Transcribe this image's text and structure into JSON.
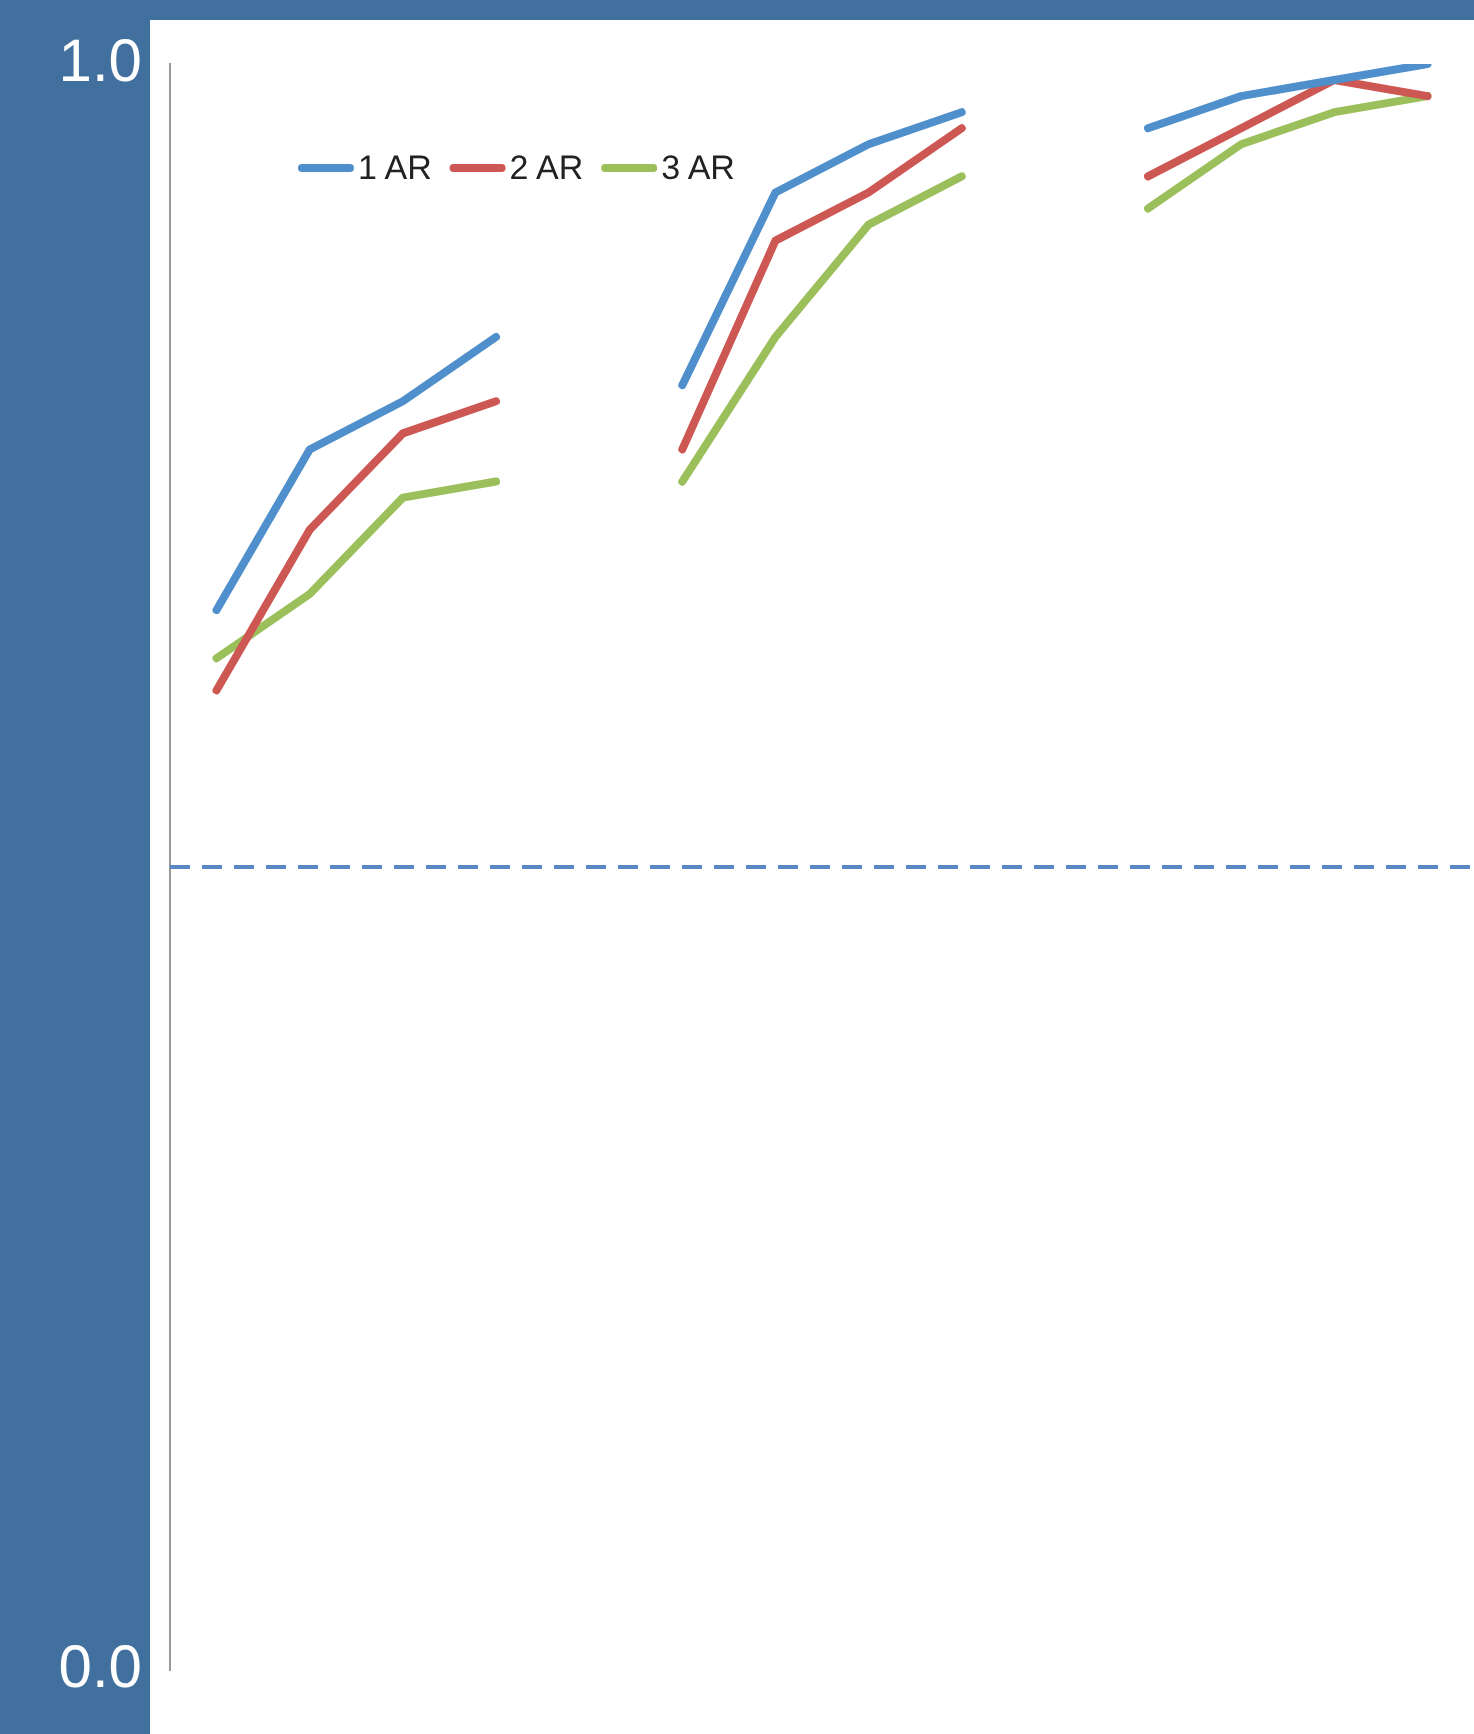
{
  "chart_data": {
    "type": "line",
    "categories": [
      null,
      null,
      null,
      null,
      null,
      null,
      null,
      null,
      null,
      null,
      null,
      null,
      null,
      null
    ],
    "series": [
      {
        "name": "1 AR",
        "color": "#4f8fcc",
        "values": [
          0.66,
          0.76,
          0.79,
          0.83,
          null,
          0.8,
          0.92,
          0.95,
          0.97,
          null,
          0.96,
          0.98,
          0.99,
          1.0
        ]
      },
      {
        "name": "2 AR",
        "color": "#cd5752",
        "values": [
          0.61,
          0.71,
          0.77,
          0.79,
          null,
          0.76,
          0.89,
          0.92,
          0.96,
          null,
          0.93,
          0.96,
          0.99,
          0.98
        ]
      },
      {
        "name": "3 AR",
        "color": "#9bbf5a",
        "values": [
          0.63,
          0.67,
          0.73,
          0.74,
          null,
          0.74,
          0.83,
          0.9,
          0.93,
          null,
          0.91,
          0.95,
          0.97,
          0.98
        ]
      }
    ],
    "ylim": [
      0,
      1
    ],
    "yticks": [
      {
        "value": 0,
        "label": "0.0"
      },
      {
        "value": 1,
        "label": "1.0"
      }
    ],
    "ref_lines": [
      {
        "axis": "y",
        "value": 0.5,
        "color": "#5b87c7",
        "line_style": "dashed"
      }
    ],
    "grid": false,
    "legend": "top left",
    "marker": "none",
    "line_style": "solid",
    "tick_labels": "y"
  }
}
